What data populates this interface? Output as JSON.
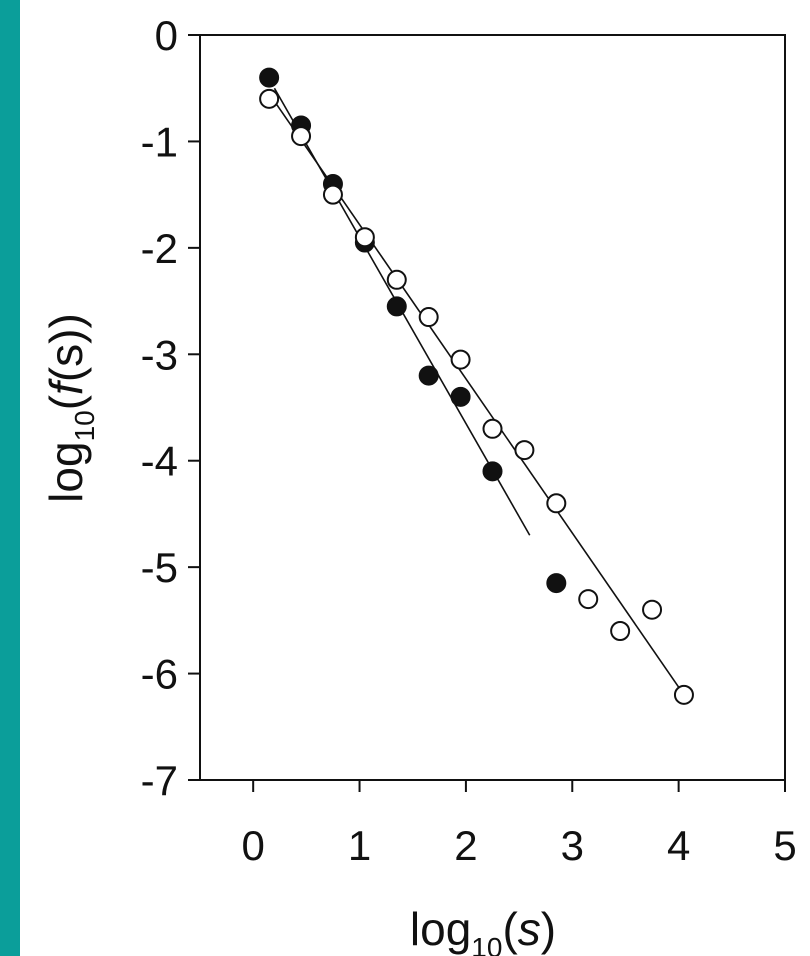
{
  "colors": {
    "frame": "#0b9e9a",
    "background": "#ffffff",
    "ink": "#111111"
  },
  "chart_data": {
    "type": "scatter",
    "title": "",
    "xlabel": {
      "prefix": "log",
      "sub": "10",
      "open": "(",
      "var": "s",
      "close": ")"
    },
    "ylabel": {
      "prefix": "log",
      "sub": "10",
      "open": "(",
      "var": "f",
      "mid": "(s))"
    },
    "xlim": [
      -0.5,
      5
    ],
    "ylim": [
      -7,
      0
    ],
    "xticks": [
      0,
      1,
      2,
      3,
      4,
      5
    ],
    "yticks": [
      0,
      -1,
      -2,
      -3,
      -4,
      -5,
      -6,
      -7
    ],
    "grid": false,
    "legend": "none",
    "series": [
      {
        "marker": "filled-circle",
        "x": [
          0.15,
          0.45,
          0.75,
          1.05,
          1.35,
          1.65,
          1.95,
          2.25,
          2.85
        ],
        "y": [
          -0.4,
          -0.85,
          -1.4,
          -1.95,
          -2.55,
          -3.2,
          -3.4,
          -4.1,
          -5.15
        ],
        "fit_line": {
          "x": [
            0.2,
            2.6
          ],
          "y": [
            -0.5,
            -4.7
          ]
        }
      },
      {
        "marker": "open-circle",
        "x": [
          0.15,
          0.45,
          0.75,
          1.05,
          1.35,
          1.65,
          1.95,
          2.25,
          2.55,
          2.85,
          3.15,
          3.45,
          3.75,
          4.05
        ],
        "y": [
          -0.6,
          -0.95,
          -1.5,
          -1.9,
          -2.3,
          -2.65,
          -3.05,
          -3.7,
          -3.9,
          -4.4,
          -5.3,
          -5.6,
          -5.4,
          -6.2
        ],
        "fit_line": {
          "x": [
            0.15,
            4.05
          ],
          "y": [
            -0.55,
            -6.2
          ]
        }
      }
    ]
  }
}
